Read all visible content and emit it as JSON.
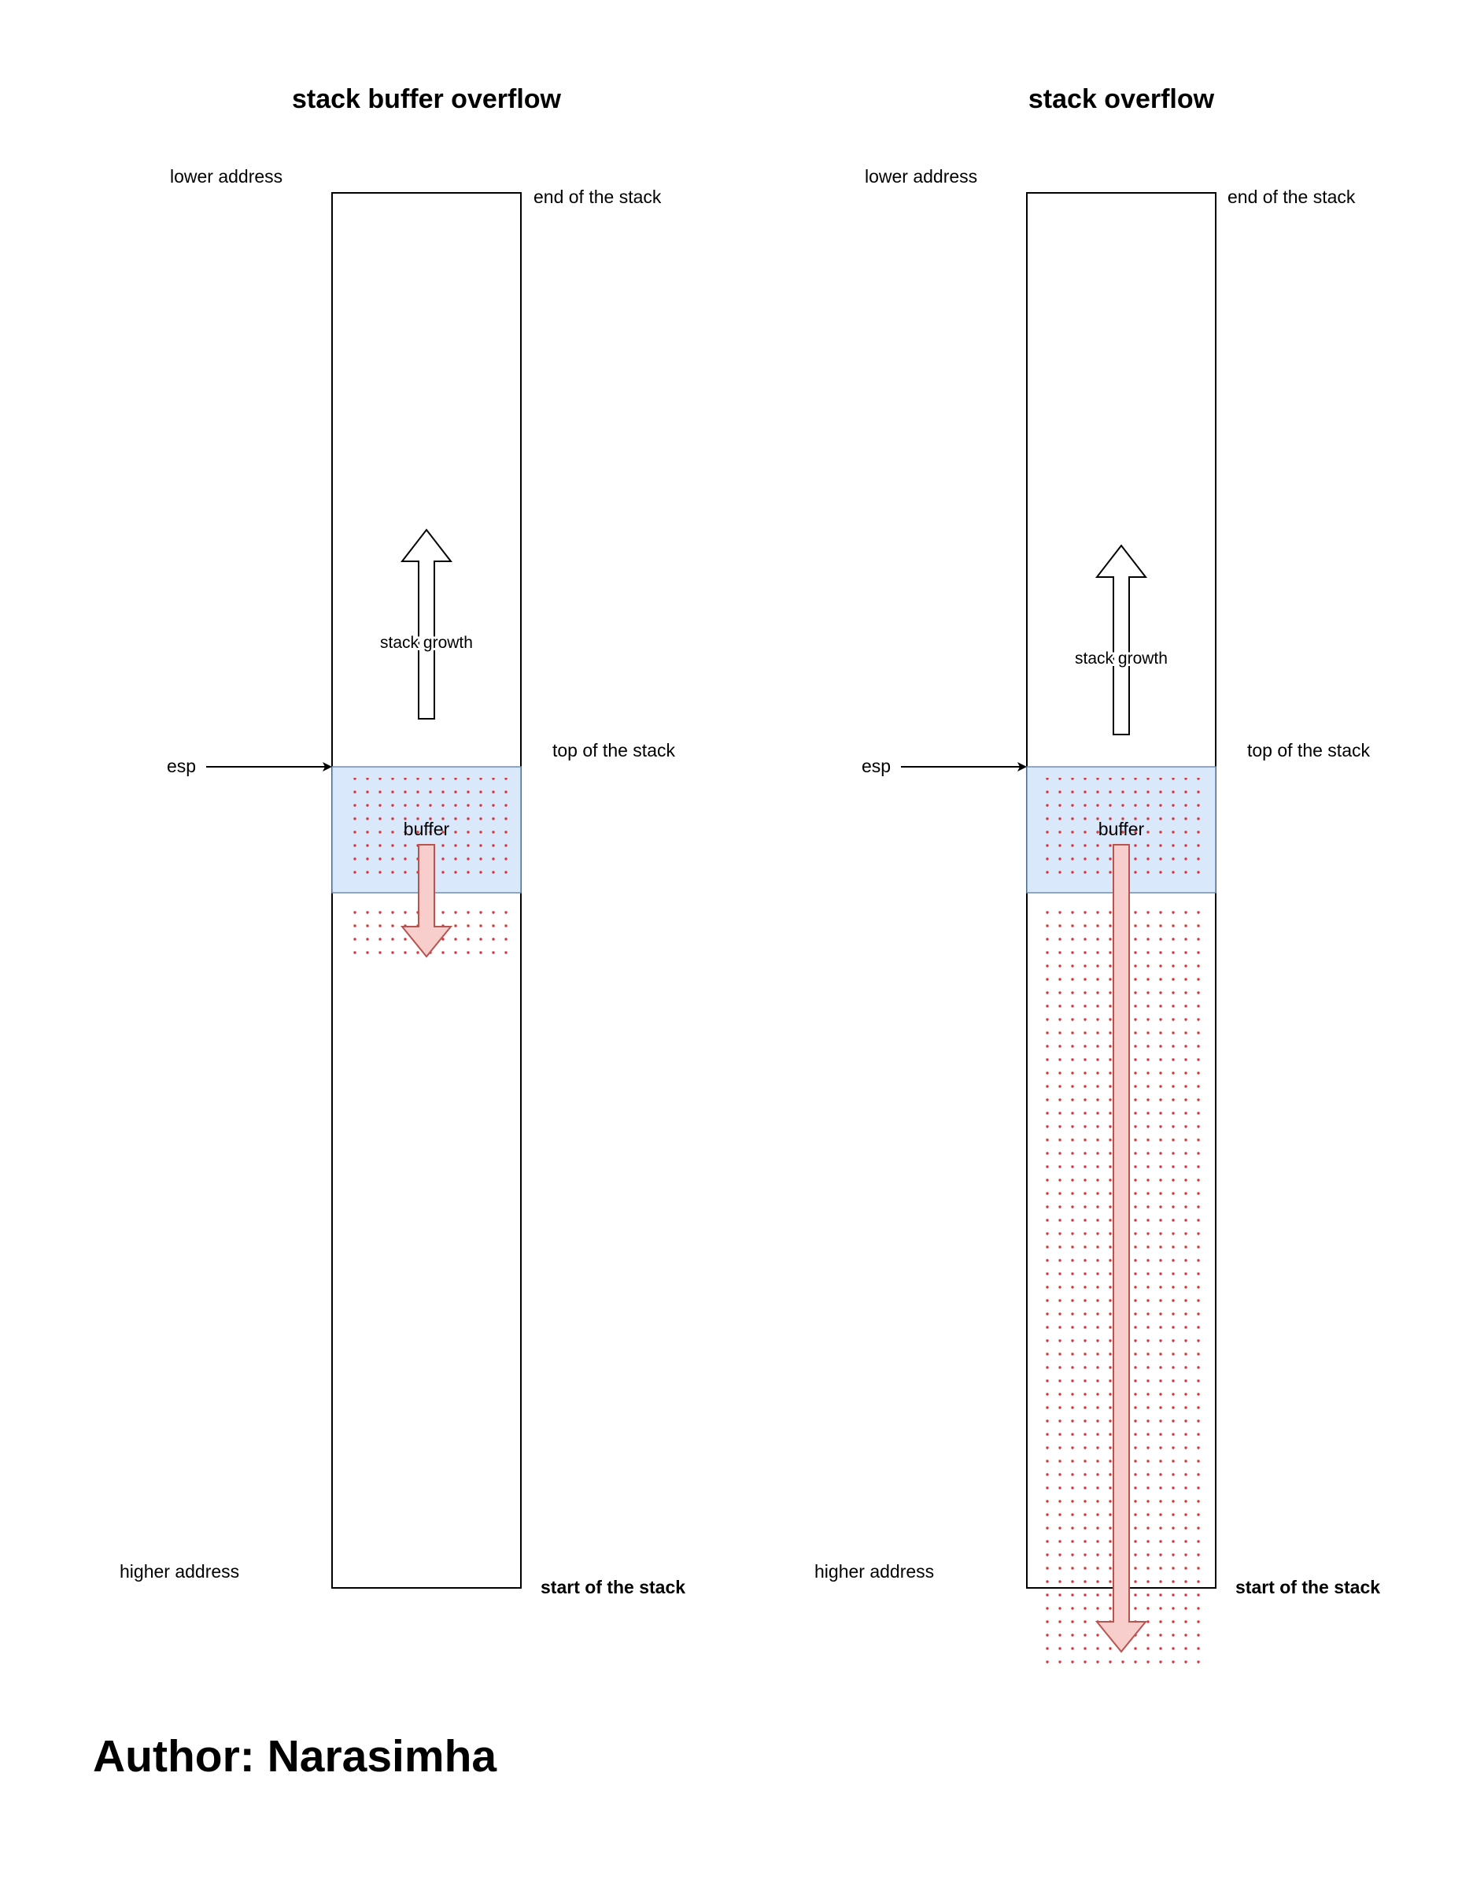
{
  "colors": {
    "buffer_fill": "#dae8fc",
    "buffer_stroke": "#6c8ebf",
    "overflow_fill": "#f8cecc",
    "overflow_stroke": "#b85450",
    "dots": "#d93636",
    "line": "#000000"
  },
  "diagrams": [
    {
      "title": "stack buffer overflow",
      "lower_address": "lower address",
      "higher_address": "higher address",
      "end_of_stack": "end of the stack",
      "top_of_stack": "top of the stack",
      "start_of_stack": "start of the stack",
      "esp": "esp",
      "stack_growth": "stack growth",
      "buffer": "buffer"
    },
    {
      "title": "stack overflow",
      "lower_address": "lower address",
      "higher_address": "higher address",
      "end_of_stack": "end of the stack",
      "top_of_stack": "top of the stack",
      "start_of_stack": "start of the stack",
      "esp": "esp",
      "stack_growth": "stack growth",
      "buffer": "buffer"
    }
  ],
  "author": "Author: Narasimha"
}
